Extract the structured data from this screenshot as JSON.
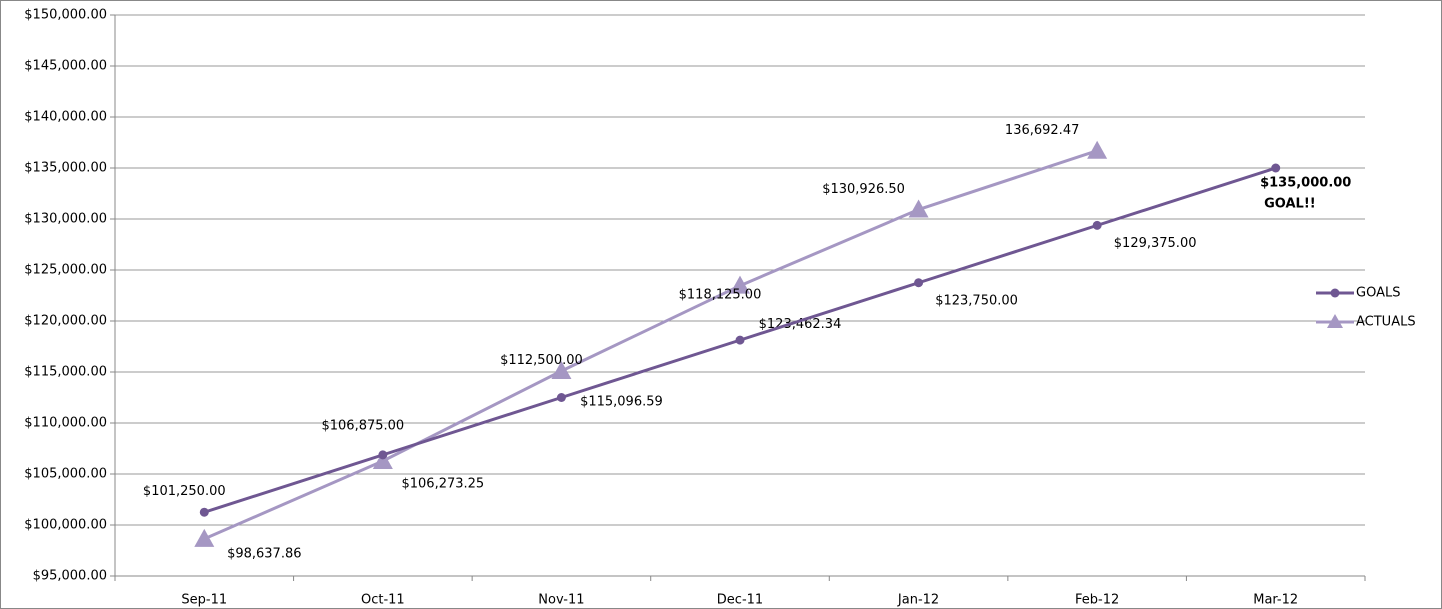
{
  "chart_data": {
    "type": "line",
    "categories": [
      "Sep-11",
      "Oct-11",
      "Nov-11",
      "Dec-11",
      "Jan-12",
      "Feb-12",
      "Mar-12"
    ],
    "series": [
      {
        "name": "GOALS",
        "color": "#6f5792",
        "marker": "circle",
        "values": [
          101250,
          106875,
          112500,
          118125,
          123750,
          129375,
          135000
        ],
        "value_labels": [
          "$101,250.00",
          "$106,875.00",
          "$112,500.00",
          "$118,125.00",
          "$123,750.00",
          "$129,375.00",
          "$135,000.00"
        ]
      },
      {
        "name": "ACTUALS",
        "color": "#a597c3",
        "marker": "triangle",
        "values": [
          98637.86,
          106273.25,
          115096.59,
          123462.34,
          130926.5,
          136692.47,
          null
        ],
        "value_labels": [
          "$98,637.86",
          "$106,273.25",
          "$115,096.59",
          "$123,462.34",
          "$130,926.50",
          "136,692.47",
          null
        ]
      }
    ],
    "annotation": "GOAL!!",
    "ylim": [
      95000,
      150000
    ],
    "yticks": [
      {
        "value": 95000,
        "label": "$95,000.00"
      },
      {
        "value": 100000,
        "label": "$100,000.00"
      },
      {
        "value": 105000,
        "label": "$105,000.00"
      },
      {
        "value": 110000,
        "label": "$110,000.00"
      },
      {
        "value": 115000,
        "label": "$115,000.00"
      },
      {
        "value": 120000,
        "label": "$120,000.00"
      },
      {
        "value": 125000,
        "label": "$125,000.00"
      },
      {
        "value": 130000,
        "label": "$130,000.00"
      },
      {
        "value": 135000,
        "label": "$135,000.00"
      },
      {
        "value": 140000,
        "label": "$140,000.00"
      },
      {
        "value": 145000,
        "label": "$145,000.00"
      },
      {
        "value": 150000,
        "label": "$150,000.00"
      }
    ],
    "grid": true,
    "legend": "right"
  }
}
